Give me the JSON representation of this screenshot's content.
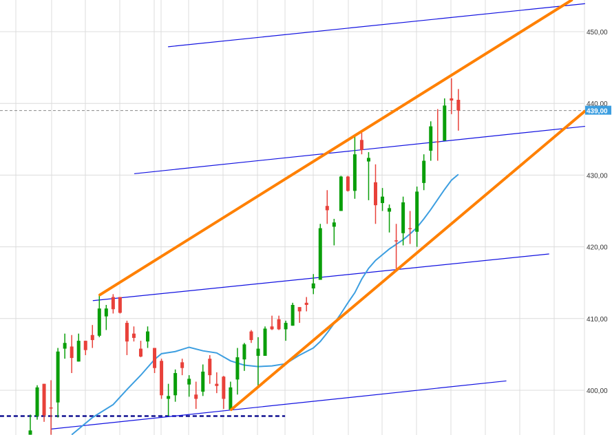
{
  "chart_data": {
    "type": "candlestick",
    "ylim": [
      393.8,
      454.4
    ],
    "y_ticks": [
      "450,00",
      "440,00",
      "430,00",
      "420,00",
      "410,00",
      "400,00"
    ],
    "y_tick_values": [
      450,
      440,
      430,
      420,
      410,
      400
    ],
    "grid": true,
    "current_price": 439.0,
    "current_price_label": "439,00",
    "colors": {
      "up": "#0a9e0a",
      "down": "#e8413a",
      "ma": "#3c9ee0",
      "trend": "#ff8000",
      "channel": "#1010e0",
      "support": "#101090",
      "last": "#e8413a",
      "price_label_bg": "#3c9ee0"
    },
    "candles_ohlc": [
      [
        393.8,
        396.6,
        393.8,
        394.4
      ],
      [
        396.4,
        400.7,
        395.9,
        400.4
      ],
      [
        400.9,
        400.9,
        395.6,
        396.5
      ],
      [
        397.6,
        401.4,
        393.8,
        397.5
      ],
      [
        398.3,
        405.9,
        396.2,
        405.4
      ],
      [
        405.8,
        407.9,
        404.4,
        406.6
      ],
      [
        406.1,
        407.7,
        402.4,
        404.5
      ],
      [
        404.0,
        407.9,
        404.0,
        406.9
      ],
      [
        406.9,
        406.9,
        404.9,
        405.6
      ],
      [
        407.7,
        409.1,
        405.9,
        407.0
      ],
      [
        407.6,
        413.2,
        407.4,
        411.4
      ],
      [
        410.3,
        411.9,
        408.4,
        411.4
      ],
      [
        413.0,
        413.4,
        410.7,
        411.3
      ],
      [
        413.0,
        413.0,
        410.7,
        410.8
      ],
      [
        409.4,
        409.7,
        404.9,
        406.8
      ],
      [
        407.9,
        408.9,
        406.8,
        407.3
      ],
      [
        405.8,
        406.9,
        404.6,
        404.7
      ],
      [
        406.8,
        408.9,
        405.9,
        408.2
      ],
      [
        405.9,
        405.9,
        402.4,
        403.1
      ],
      [
        404.1,
        404.4,
        398.8,
        399.3
      ],
      [
        398.8,
        400.9,
        396.4,
        399.2
      ],
      [
        399.3,
        402.9,
        398.4,
        402.4
      ],
      [
        403.9,
        404.4,
        402.1,
        403.1
      ],
      [
        400.8,
        402.1,
        399.1,
        401.6
      ],
      [
        399.4,
        401.2,
        397.4,
        398.8
      ],
      [
        399.8,
        403.6,
        399.2,
        402.6
      ],
      [
        404.4,
        404.9,
        400.9,
        402.1
      ],
      [
        400.9,
        402.5,
        399.6,
        400.6
      ],
      [
        401.9,
        402.0,
        397.4,
        398.8
      ],
      [
        397.3,
        401.2,
        397.3,
        400.4
      ],
      [
        401.5,
        405.9,
        399.4,
        404.6
      ],
      [
        404.3,
        406.6,
        402.7,
        406.4
      ],
      [
        408.2,
        408.4,
        406.6,
        407.0
      ],
      [
        404.8,
        407.4,
        400.6,
        405.8
      ],
      [
        404.8,
        408.9,
        404.8,
        408.6
      ],
      [
        408.9,
        410.4,
        408.4,
        408.5
      ],
      [
        409.9,
        410.4,
        408.4,
        408.5
      ],
      [
        408.5,
        409.7,
        406.9,
        409.4
      ],
      [
        409.0,
        412.2,
        409.0,
        411.9
      ],
      [
        411.6,
        411.6,
        409.4,
        411.0
      ],
      [
        412.2,
        413.0,
        411.0,
        411.9
      ],
      [
        414.2,
        416.2,
        413.4,
        414.9
      ],
      [
        415.4,
        423.2,
        415.4,
        422.6
      ],
      [
        425.7,
        427.9,
        423.2,
        425.1
      ],
      [
        422.8,
        423.9,
        420.2,
        423.4
      ],
      [
        425.0,
        429.9,
        425.0,
        429.8
      ],
      [
        429.8,
        429.9,
        427.7,
        427.8
      ],
      [
        427.8,
        435.4,
        426.7,
        432.9
      ],
      [
        434.9,
        435.9,
        432.9,
        433.5
      ],
      [
        431.9,
        433.2,
        426.5,
        432.4
      ],
      [
        429.0,
        431.5,
        423.2,
        425.8
      ],
      [
        426.1,
        428.2,
        425.0,
        427.0
      ],
      [
        424.9,
        425.9,
        422.0,
        425.4
      ],
      [
        420.9,
        423.2,
        416.7,
        420.8
      ],
      [
        421.9,
        427.0,
        420.2,
        426.2
      ],
      [
        422.6,
        425.0,
        420.4,
        422.5
      ],
      [
        422.1,
        428.4,
        420.0,
        427.7
      ],
      [
        428.9,
        432.9,
        427.9,
        432.0
      ],
      [
        433.4,
        437.5,
        432.0,
        436.8
      ],
      [
        434.7,
        439.2,
        432.0,
        434.6
      ],
      [
        434.8,
        440.7,
        434.8,
        439.7
      ],
      [
        440.7,
        443.5,
        438.5,
        440.4
      ],
      [
        440.5,
        442.0,
        436.2,
        439.0
      ]
    ],
    "moving_average": [
      [
        6,
        393.8
      ],
      [
        9,
        396.2
      ],
      [
        12,
        398.0
      ],
      [
        14,
        400.1
      ],
      [
        16,
        402.1
      ],
      [
        18,
        404.3
      ],
      [
        19,
        405.1
      ],
      [
        21,
        405.4
      ],
      [
        23,
        406.0
      ],
      [
        25,
        405.5
      ],
      [
        27,
        405.2
      ],
      [
        29,
        404.1
      ],
      [
        31,
        403.5
      ],
      [
        33,
        403.3
      ],
      [
        35,
        403.4
      ],
      [
        37,
        403.7
      ],
      [
        39,
        404.9
      ],
      [
        41,
        405.9
      ],
      [
        42,
        406.8
      ],
      [
        43,
        408.0
      ],
      [
        44,
        409.3
      ],
      [
        45,
        410.7
      ],
      [
        46,
        412.2
      ],
      [
        47,
        413.6
      ],
      [
        48,
        415.5
      ],
      [
        49,
        417.0
      ],
      [
        50,
        418.1
      ],
      [
        52,
        419.7
      ],
      [
        54,
        421.0
      ],
      [
        55,
        421.8
      ],
      [
        56,
        422.7
      ],
      [
        57,
        423.9
      ],
      [
        58,
        425.2
      ],
      [
        59,
        426.6
      ],
      [
        60,
        428.0
      ],
      [
        61,
        429.3
      ],
      [
        62,
        430.1
      ]
    ],
    "trend_lines": [
      {
        "kind": "trend",
        "from": [
          10.07,
          413.3
        ],
        "to": [
          78.4,
          454.4
        ]
      },
      {
        "kind": "trend",
        "from": [
          29.1,
          397.3
        ],
        "to": [
          80.3,
          438.9
        ]
      },
      {
        "kind": "channel",
        "from": [
          20.0,
          447.9
        ],
        "to": [
          80.3,
          453.9
        ]
      },
      {
        "kind": "channel",
        "from": [
          15.1,
          430.2
        ],
        "to": [
          80.3,
          436.8
        ]
      },
      {
        "kind": "channel",
        "from": [
          9.1,
          412.5
        ],
        "to": [
          75.1,
          419.0
        ]
      },
      {
        "kind": "channel",
        "from": [
          3.1,
          394.6
        ],
        "to": [
          68.9,
          401.3
        ]
      }
    ],
    "support_line": {
      "value": 396.4,
      "from": -4.4,
      "to": 36.9
    }
  }
}
